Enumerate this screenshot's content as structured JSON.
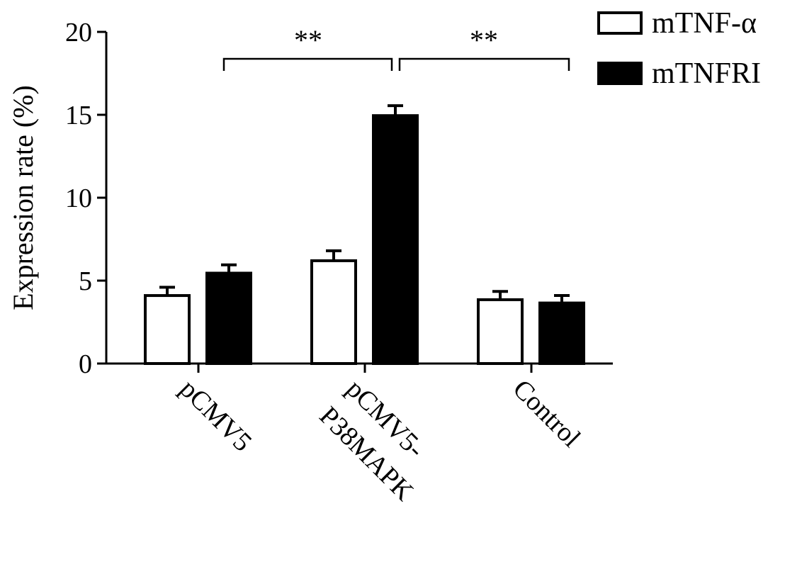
{
  "chart_data": {
    "type": "bar",
    "y_label": "Expression rate (%)",
    "categories": [
      [
        "pCMV5"
      ],
      [
        "pCMV5-",
        "P38MAPK"
      ],
      [
        "Control"
      ]
    ],
    "series": [
      {
        "name": "mTNF-α",
        "color": "#ffffff",
        "values": [
          4.1,
          6.2,
          3.85
        ],
        "errors": [
          0.5,
          0.6,
          0.5
        ]
      },
      {
        "name": "mTNFRI",
        "color": "#000000",
        "values": [
          5.45,
          14.95,
          3.65
        ],
        "errors": [
          0.5,
          0.6,
          0.45
        ]
      }
    ],
    "ylim": [
      0,
      20
    ],
    "yticks": [
      0,
      5,
      10,
      15,
      20
    ],
    "annotations": [
      "**",
      "**"
    ]
  }
}
